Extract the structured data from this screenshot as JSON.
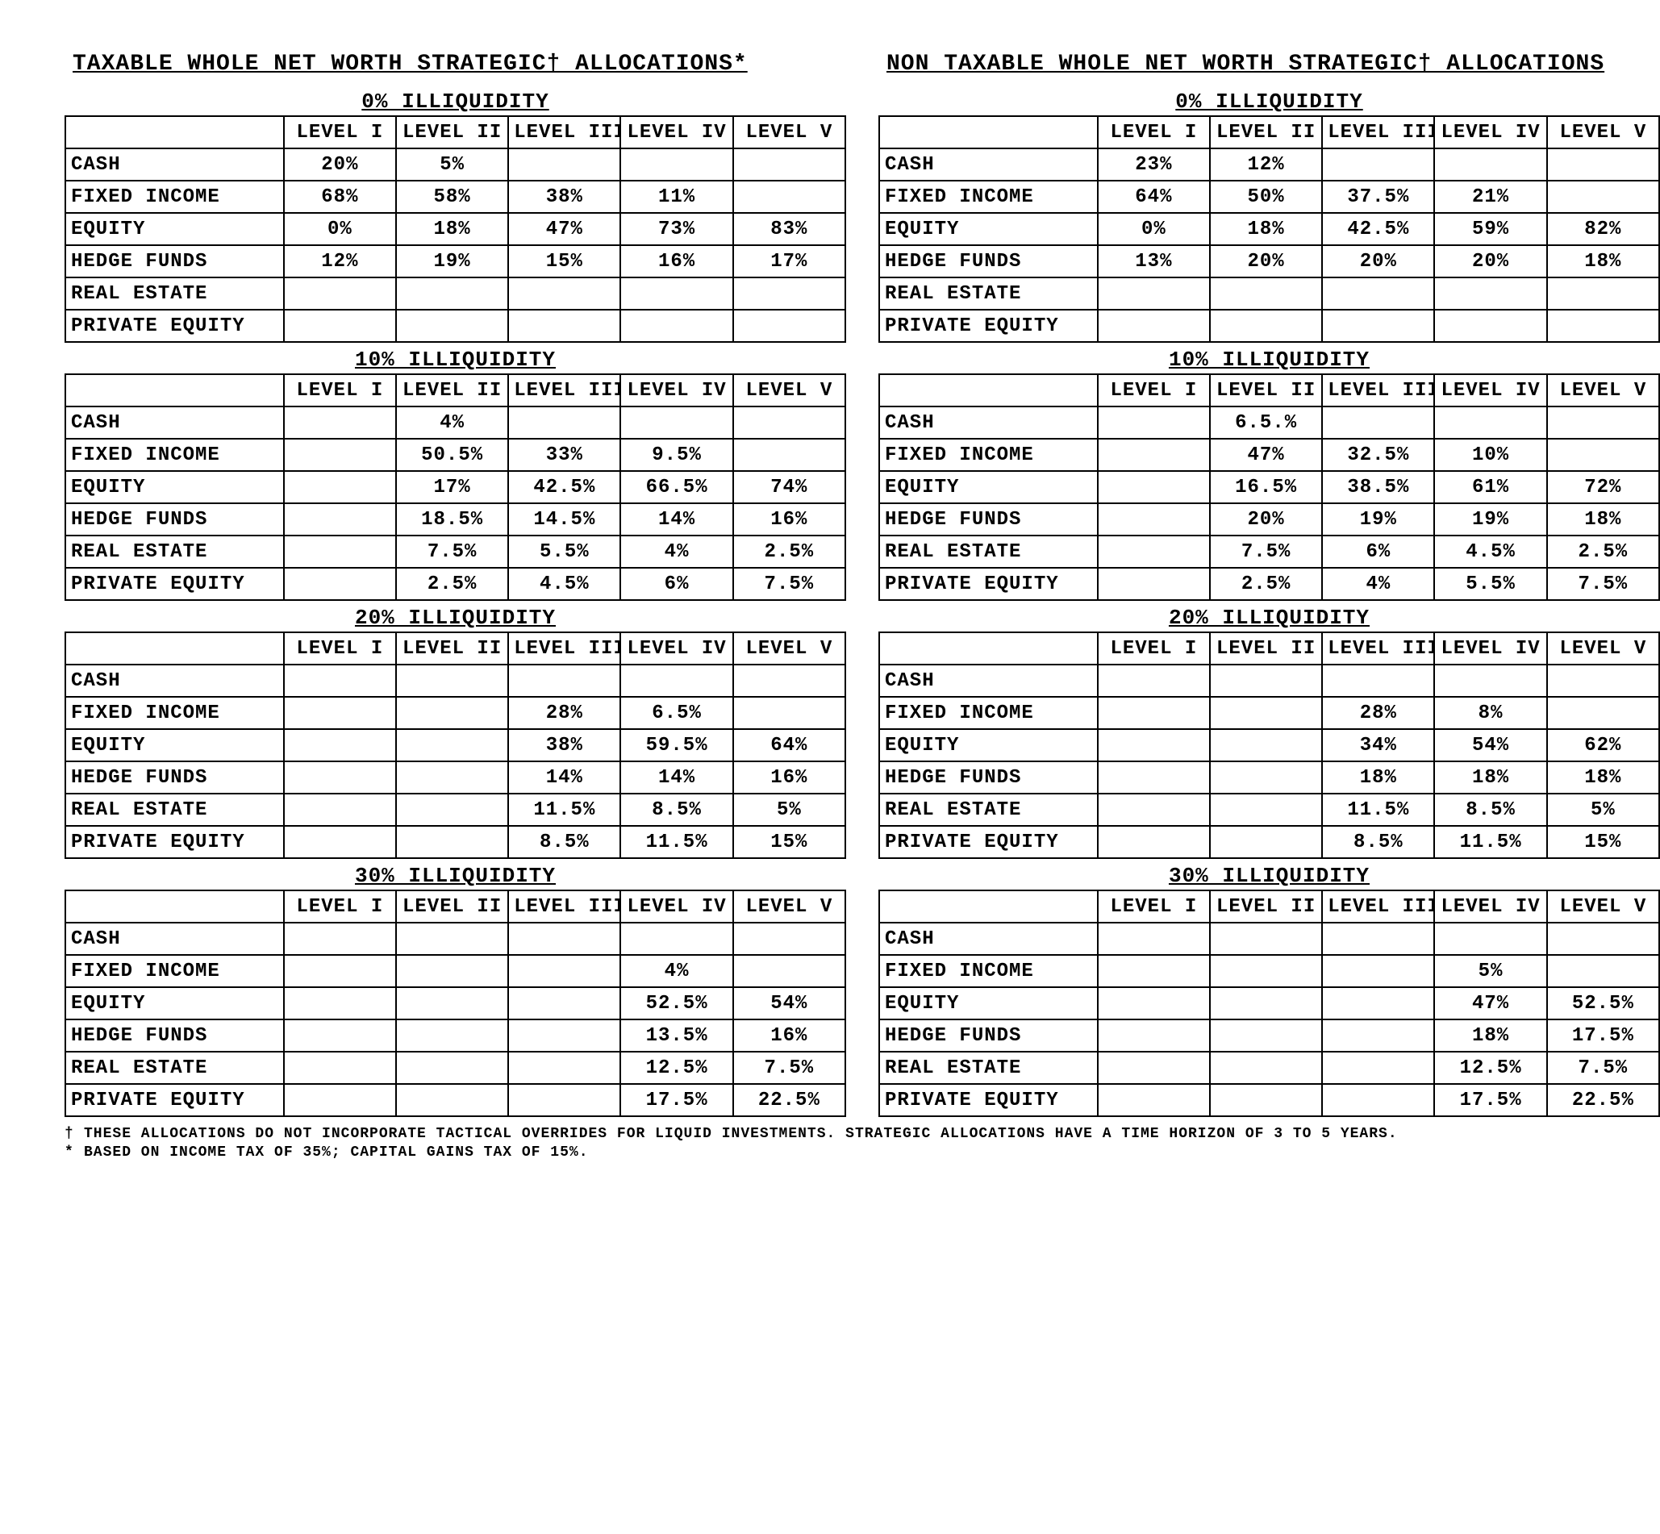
{
  "titles": {
    "left": "TAXABLE WHOLE NET WORTH STRATEGIC† ALLOCATIONS*",
    "right": "NON TAXABLE WHOLE NET WORTH STRATEGIC† ALLOCATIONS"
  },
  "levels": [
    "LEVEL I",
    "LEVEL II",
    "LEVEL III",
    "LEVEL IV",
    "LEVEL V"
  ],
  "rows": [
    "CASH",
    "FIXED INCOME",
    "EQUITY",
    "HEDGE FUNDS",
    "REAL ESTATE",
    "PRIVATE EQUITY"
  ],
  "sections": [
    "0% ILLIQUIDITY",
    "10% ILLIQUIDITY",
    "20% ILLIQUIDITY",
    "30% ILLIQUIDITY"
  ],
  "left": [
    [
      [
        "20%",
        "5%",
        "",
        "",
        ""
      ],
      [
        "68%",
        "58%",
        "38%",
        "11%",
        ""
      ],
      [
        "0%",
        "18%",
        "47%",
        "73%",
        "83%"
      ],
      [
        "12%",
        "19%",
        "15%",
        "16%",
        "17%"
      ],
      [
        "",
        "",
        "",
        "",
        ""
      ],
      [
        "",
        "",
        "",
        "",
        ""
      ]
    ],
    [
      [
        "",
        "4%",
        "",
        "",
        ""
      ],
      [
        "",
        "50.5%",
        "33%",
        "9.5%",
        ""
      ],
      [
        "",
        "17%",
        "42.5%",
        "66.5%",
        "74%"
      ],
      [
        "",
        "18.5%",
        "14.5%",
        "14%",
        "16%"
      ],
      [
        "",
        "7.5%",
        "5.5%",
        "4%",
        "2.5%"
      ],
      [
        "",
        "2.5%",
        "4.5%",
        "6%",
        "7.5%"
      ]
    ],
    [
      [
        "",
        "",
        "",
        "",
        ""
      ],
      [
        "",
        "",
        "28%",
        "6.5%",
        ""
      ],
      [
        "",
        "",
        "38%",
        "59.5%",
        "64%"
      ],
      [
        "",
        "",
        "14%",
        "14%",
        "16%"
      ],
      [
        "",
        "",
        "11.5%",
        "8.5%",
        "5%"
      ],
      [
        "",
        "",
        "8.5%",
        "11.5%",
        "15%"
      ]
    ],
    [
      [
        "",
        "",
        "",
        "",
        ""
      ],
      [
        "",
        "",
        "",
        "4%",
        ""
      ],
      [
        "",
        "",
        "",
        "52.5%",
        "54%"
      ],
      [
        "",
        "",
        "",
        "13.5%",
        "16%"
      ],
      [
        "",
        "",
        "",
        "12.5%",
        "7.5%"
      ],
      [
        "",
        "",
        "",
        "17.5%",
        "22.5%"
      ]
    ]
  ],
  "right": [
    [
      [
        "23%",
        "12%",
        "",
        "",
        ""
      ],
      [
        "64%",
        "50%",
        "37.5%",
        "21%",
        ""
      ],
      [
        "0%",
        "18%",
        "42.5%",
        "59%",
        "82%"
      ],
      [
        "13%",
        "20%",
        "20%",
        "20%",
        "18%"
      ],
      [
        "",
        "",
        "",
        "",
        ""
      ],
      [
        "",
        "",
        "",
        "",
        ""
      ]
    ],
    [
      [
        "",
        "6.5.%",
        "",
        "",
        ""
      ],
      [
        "",
        "47%",
        "32.5%",
        "10%",
        ""
      ],
      [
        "",
        "16.5%",
        "38.5%",
        "61%",
        "72%"
      ],
      [
        "",
        "20%",
        "19%",
        "19%",
        "18%"
      ],
      [
        "",
        "7.5%",
        "6%",
        "4.5%",
        "2.5%"
      ],
      [
        "",
        "2.5%",
        "4%",
        "5.5%",
        "7.5%"
      ]
    ],
    [
      [
        "",
        "",
        "",
        "",
        ""
      ],
      [
        "",
        "",
        "28%",
        "8%",
        ""
      ],
      [
        "",
        "",
        "34%",
        "54%",
        "62%"
      ],
      [
        "",
        "",
        "18%",
        "18%",
        "18%"
      ],
      [
        "",
        "",
        "11.5%",
        "8.5%",
        "5%"
      ],
      [
        "",
        "",
        "8.5%",
        "11.5%",
        "15%"
      ]
    ],
    [
      [
        "",
        "",
        "",
        "",
        ""
      ],
      [
        "",
        "",
        "",
        "5%",
        ""
      ],
      [
        "",
        "",
        "",
        "47%",
        "52.5%"
      ],
      [
        "",
        "",
        "",
        "18%",
        "17.5%"
      ],
      [
        "",
        "",
        "",
        "12.5%",
        "7.5%"
      ],
      [
        "",
        "",
        "",
        "17.5%",
        "22.5%"
      ]
    ]
  ],
  "footnotes": {
    "dagger": "THESE ALLOCATIONS DO NOT INCORPORATE TACTICAL OVERRIDES FOR LIQUID INVESTMENTS. STRATEGIC ALLOCATIONS HAVE A TIME HORIZON OF 3 TO 5 YEARS.",
    "star": "BASED ON INCOME TAX OF 35%; CAPITAL GAINS TAX OF 15%."
  },
  "style": {
    "font_family": "Courier New, monospace",
    "text_color": "#000000",
    "background_color": "#ffffff",
    "border_color": "#000000",
    "title_fontsize": 28,
    "section_fontsize": 26,
    "cell_fontsize": 24,
    "footnote_fontsize": 18,
    "border_width": 2
  }
}
